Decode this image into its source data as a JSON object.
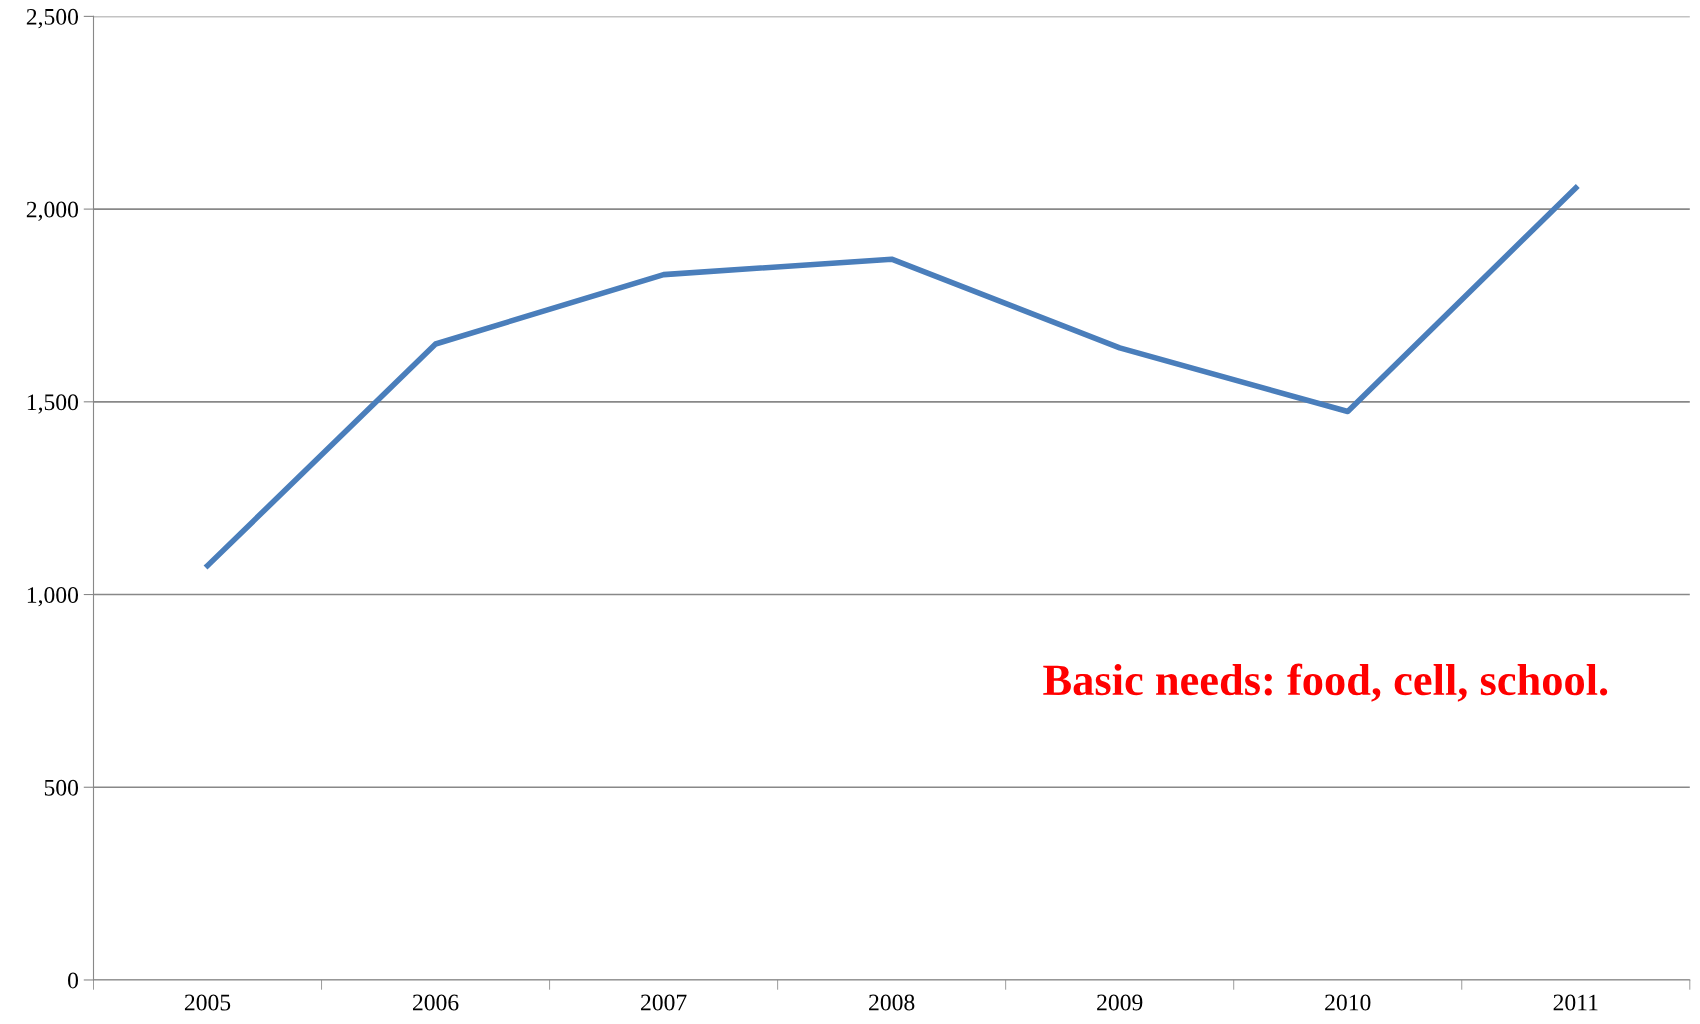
{
  "chart_data": {
    "type": "line",
    "categories": [
      "2005",
      "2006",
      "2007",
      "2008",
      "2009",
      "2010",
      "2011"
    ],
    "series": [
      {
        "color": "#4a7ebb",
        "values": [
          1075,
          1650,
          1830,
          1870,
          1640,
          1475,
          2055
        ]
      }
    ],
    "ylim": [
      0,
      2500
    ],
    "yticks": [
      0,
      {
        "value": 500,
        "label": "500"
      },
      {
        "value": 1000,
        "label": "1,000"
      },
      {
        "value": 1500,
        "label": "1,500"
      },
      {
        "value": 2000,
        "label": "2,000"
      },
      {
        "value": 2500,
        "label": "2,500"
      }
    ],
    "grid": "y",
    "marker": "none",
    "line_style": "solid",
    "annotations": [
      "Basic needs: food, cell, school."
    ]
  }
}
